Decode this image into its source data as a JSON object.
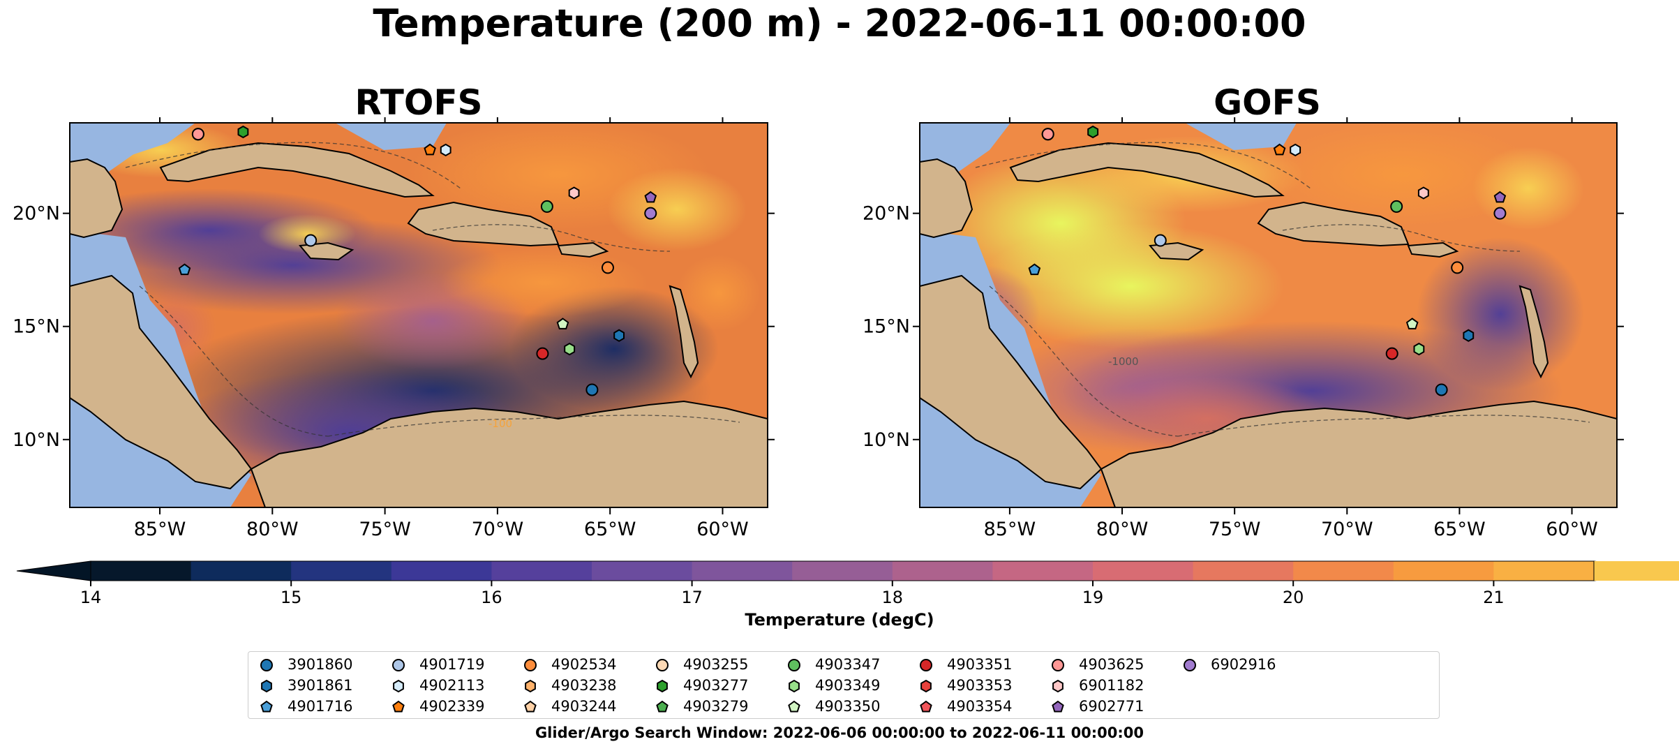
{
  "title": "Temperature (200 m) - 2022-06-11 00:00:00",
  "panels": [
    {
      "title": "RTOFS",
      "variant": "rtofs"
    },
    {
      "title": "GOFS",
      "variant": "gofs"
    }
  ],
  "map": {
    "lon_range": [
      -89.0,
      -58.0
    ],
    "lat_range": [
      7.0,
      24.0
    ],
    "x_ticks": [
      -85,
      -80,
      -75,
      -70,
      -65,
      -60
    ],
    "x_tick_labels": [
      "85°W",
      "80°W",
      "75°W",
      "70°W",
      "65°W",
      "60°W"
    ],
    "y_ticks": [
      10,
      15,
      20
    ],
    "y_tick_labels": [
      "10°N",
      "15°N",
      "20°N"
    ],
    "contour_labels": [
      "-100",
      "-1000"
    ],
    "colors": {
      "land": "#d2b48c",
      "shelf": "#97b6e1",
      "coast": "#000000"
    }
  },
  "colorbar": {
    "label": "Temperature (degC)",
    "min": 14,
    "max": 21.5,
    "step": 0.5,
    "ticks": [
      14,
      15,
      16,
      17,
      18,
      19,
      20,
      21
    ],
    "extend": "both",
    "colors": [
      "#06182b",
      "#0e2b5c",
      "#23347f",
      "#3c3897",
      "#55409c",
      "#6b4c9e",
      "#7f559c",
      "#965e96",
      "#ad628d",
      "#c56783",
      "#d86c73",
      "#e6785f",
      "#f2894a",
      "#f79b3f",
      "#f9b043",
      "#f9c84e",
      "#f5de57"
    ],
    "under_color": "#031526",
    "over_color": "#e8f55e"
  },
  "legend": {
    "items": [
      {
        "label": "3901860",
        "marker": "circle",
        "color": "#1f77b4"
      },
      {
        "label": "3901861",
        "marker": "hexagon",
        "color": "#1f77b4"
      },
      {
        "label": "4901716",
        "marker": "pentagon",
        "color": "#4a9fd8"
      },
      {
        "label": "4901719",
        "marker": "circle",
        "color": "#aec7e8"
      },
      {
        "label": "4902113",
        "marker": "hexagon",
        "color": "#d6ecfa"
      },
      {
        "label": "4902339",
        "marker": "pentagon",
        "color": "#ff7f0e"
      },
      {
        "label": "4902534",
        "marker": "circle",
        "color": "#fd8d3c"
      },
      {
        "label": "4903238",
        "marker": "hexagon",
        "color": "#ffb26b"
      },
      {
        "label": "4903244",
        "marker": "pentagon",
        "color": "#ffd1a6"
      },
      {
        "label": "4903255",
        "marker": "circle",
        "color": "#fdd9b5"
      },
      {
        "label": "4903277",
        "marker": "hexagon",
        "color": "#2ca02c"
      },
      {
        "label": "4903279",
        "marker": "pentagon",
        "color": "#4caf50"
      },
      {
        "label": "4903347",
        "marker": "circle",
        "color": "#5fbf5f"
      },
      {
        "label": "4903349",
        "marker": "hexagon",
        "color": "#98df8a"
      },
      {
        "label": "4903350",
        "marker": "pentagon",
        "color": "#d2f5c3"
      },
      {
        "label": "4903351",
        "marker": "circle",
        "color": "#d62728"
      },
      {
        "label": "4903353",
        "marker": "hexagon",
        "color": "#e8413c"
      },
      {
        "label": "4903354",
        "marker": "pentagon",
        "color": "#f0555a"
      },
      {
        "label": "4903625",
        "marker": "circle",
        "color": "#ff9896"
      },
      {
        "label": "6901182",
        "marker": "hexagon",
        "color": "#ffc8c8"
      },
      {
        "label": "6902771",
        "marker": "pentagon",
        "color": "#9467bd"
      },
      {
        "label": "6902916",
        "marker": "circle",
        "color": "#a27cd0"
      }
    ]
  },
  "platforms": [
    {
      "id": "3901860",
      "lon": -65.8,
      "lat": 12.2
    },
    {
      "id": "3901861",
      "lon": -64.6,
      "lat": 14.6
    },
    {
      "id": "4901716",
      "lon": -83.9,
      "lat": 17.5
    },
    {
      "id": "4901719",
      "lon": -78.3,
      "lat": 18.8
    },
    {
      "id": "4902113",
      "lon": -72.3,
      "lat": 22.8
    },
    {
      "id": "4902339",
      "lon": -73.0,
      "lat": 22.8
    },
    {
      "id": "4902534",
      "lon": -65.1,
      "lat": 17.6
    },
    {
      "id": "4903255",
      "lon": -83.3,
      "lat": 23.5
    },
    {
      "id": "4903277",
      "lon": -81.3,
      "lat": 23.6
    },
    {
      "id": "4903347",
      "lon": -67.8,
      "lat": 20.3
    },
    {
      "id": "4903349",
      "lon": -66.8,
      "lat": 14.0
    },
    {
      "id": "4903350",
      "lon": -67.1,
      "lat": 15.1
    },
    {
      "id": "4903351",
      "lon": -68.0,
      "lat": 13.8
    },
    {
      "id": "4903625",
      "lon": -83.3,
      "lat": 23.5
    },
    {
      "id": "6901182",
      "lon": -66.6,
      "lat": 20.9
    },
    {
      "id": "6902771",
      "lon": -63.2,
      "lat": 20.7
    },
    {
      "id": "6902916",
      "lon": -63.2,
      "lat": 20.0
    }
  ],
  "footer": "Glider/Argo Search Window: 2022-06-06 00:00:00 to 2022-06-11 00:00:00"
}
